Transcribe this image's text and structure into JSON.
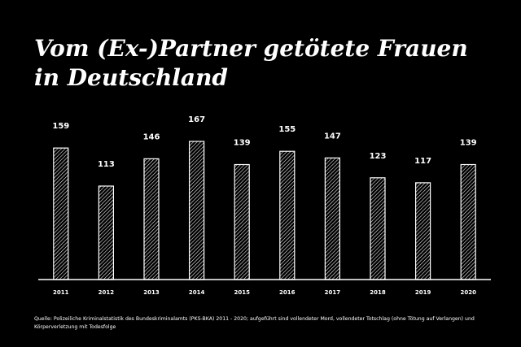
{
  "title_lines": [
    "Vom (Ex-)Partner getötete Frauen",
    "in Deutschland"
  ],
  "source": "Quelle: Polizeiliche Kriminalstatistik des Bundeskriminalamts (PKS-BKA) 2011 - 2020; aufgeführt sind vollendeter Mord, vollendeter Totschlag (ohne Tötung auf Verlangen) und Körperverletzung mit Todesfolge",
  "colors": {
    "background": "#000000",
    "foreground": "#ffffff"
  },
  "chart_data": {
    "type": "bar",
    "title": "Vom (Ex-)Partner getötete Frauen in Deutschland",
    "xlabel": "",
    "ylabel": "",
    "categories": [
      "2011",
      "2012",
      "2013",
      "2014",
      "2015",
      "2016",
      "2017",
      "2018",
      "2019",
      "2020"
    ],
    "values": [
      159,
      113,
      146,
      167,
      139,
      155,
      147,
      123,
      117,
      139
    ],
    "ylim": [
      0,
      167
    ],
    "grid": false,
    "legend": "none",
    "bar_fill": "white diagonal hatching on black"
  }
}
